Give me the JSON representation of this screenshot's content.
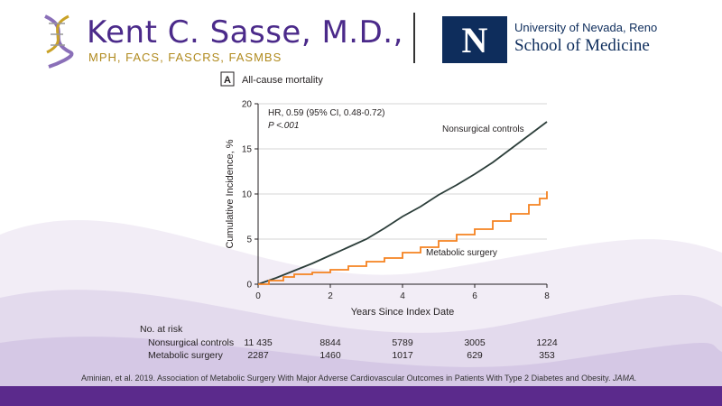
{
  "header": {
    "name": "Kent C. Sasse, M.D.,",
    "credentials": "MPH, FACS, FASCRS, FASMBS",
    "unr_logo_letter": "N",
    "unr_university": "University of Nevada, Reno",
    "unr_school": "School of Medicine"
  },
  "colors": {
    "nonsurgical": "#2c3e3a",
    "metabolic": "#f58220",
    "footer": "#5b2a8c",
    "name": "#4b2a8a",
    "credentials": "#b08a1e",
    "unr_navy": "#0e2d5c"
  },
  "chart_data": {
    "type": "line",
    "panel_label": "A",
    "title": "All-cause mortality",
    "xlabel": "Years Since Index Date",
    "ylabel": "Cumulative Incidence, %",
    "xlim": [
      0,
      8
    ],
    "ylim": [
      0,
      20
    ],
    "x_ticks": [
      0,
      2,
      4,
      6,
      8
    ],
    "y_ticks": [
      0,
      5,
      10,
      15,
      20
    ],
    "grid": "horizontal",
    "stats_line1": "HR, 0.59 (95% CI, 0.48-0.72)",
    "stats_line2": "P <.001",
    "series": [
      {
        "name": "Nonsurgical controls",
        "step": false,
        "x": [
          0,
          0.5,
          1,
          1.5,
          2,
          2.5,
          3,
          3.5,
          4,
          4.5,
          5,
          5.5,
          6,
          6.5,
          7,
          7.5,
          8
        ],
        "y": [
          0,
          0.7,
          1.5,
          2.3,
          3.2,
          4.1,
          5.0,
          6.2,
          7.5,
          8.6,
          9.9,
          11.0,
          12.2,
          13.5,
          15.0,
          16.5,
          18.0
        ]
      },
      {
        "name": "Metabolic surgery",
        "step": true,
        "x": [
          0,
          0.3,
          0.7,
          1,
          1.5,
          2,
          2.5,
          3,
          3.5,
          4,
          4.5,
          5,
          5.5,
          6,
          6.5,
          7,
          7.5,
          7.8,
          8
        ],
        "y": [
          0,
          0.4,
          0.8,
          1.1,
          1.3,
          1.6,
          2.0,
          2.5,
          2.9,
          3.5,
          4.1,
          4.8,
          5.5,
          6.1,
          7.0,
          7.8,
          8.8,
          9.5,
          10.3
        ]
      }
    ]
  },
  "risk_table": {
    "title": "No. at risk",
    "rows": [
      {
        "label": "Nonsurgical controls",
        "values": [
          "11 435",
          "8844",
          "5789",
          "3005",
          "1224"
        ]
      },
      {
        "label": "Metabolic surgery",
        "values": [
          "2287",
          "1460",
          "1017",
          "629",
          "353"
        ]
      }
    ]
  },
  "citation": {
    "text": "Aminian, et al. 2019. Association of Metabolic Surgery With Major Adverse Cardiovascular Outcomes in Patients With Type 2 Diabetes and Obesity. ",
    "journal": "JAMA."
  }
}
